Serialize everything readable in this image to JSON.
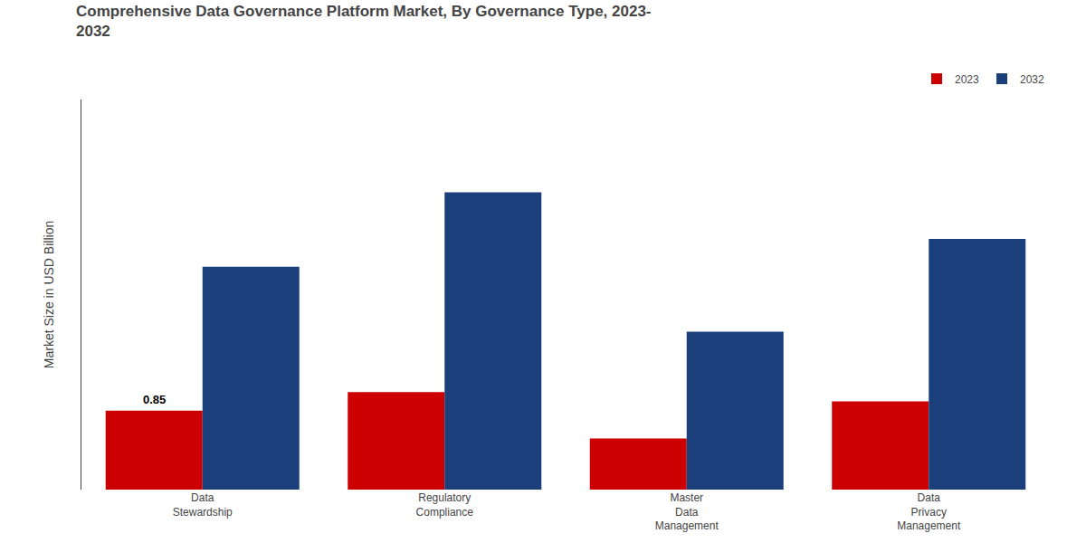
{
  "chart_data": {
    "type": "bar",
    "title": "Comprehensive Data Governance Platform Market, By Governance Type, 2023-\n2032",
    "ylabel": "Market Size in USD Billion",
    "categories": [
      "Data\nStewardship",
      "Regulatory\nCompliance",
      "Master\nData\nManagement",
      "Data\nPrivacy\nManagement"
    ],
    "series": [
      {
        "name": "2023",
        "color": "#cc0000",
        "values": [
          0.85,
          1.05,
          0.55,
          0.95
        ]
      },
      {
        "name": "2032",
        "color": "#1a3f7a",
        "values": [
          2.4,
          3.2,
          1.7,
          2.7
        ]
      }
    ],
    "annotations": [
      {
        "text": "0.85",
        "category": "Data\nStewardship",
        "series": "2023",
        "value": 0.85
      }
    ],
    "ylim": [
      0,
      4.2
    ],
    "yticks": [],
    "tick_labels": "x",
    "grid": false,
    "legend": "top right"
  }
}
